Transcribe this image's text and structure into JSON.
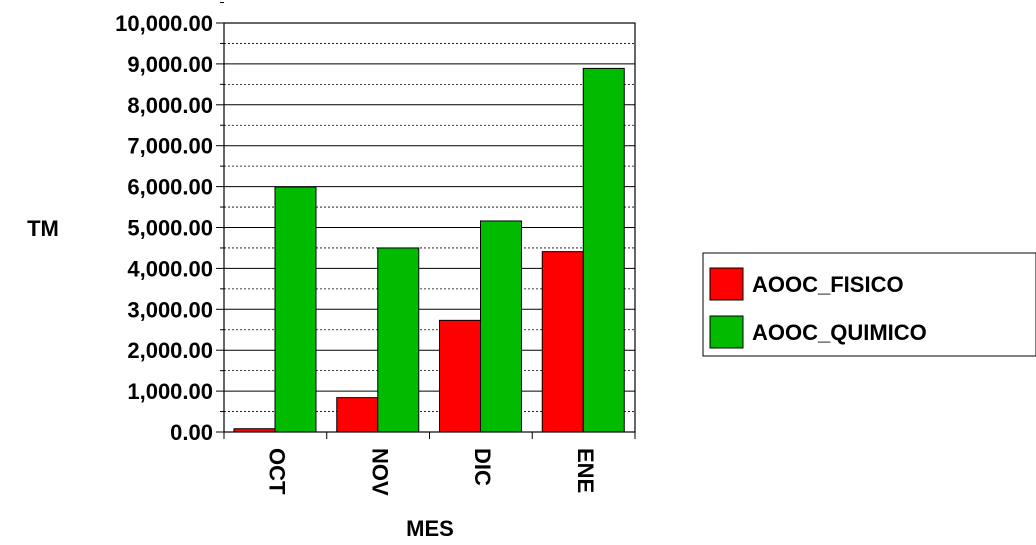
{
  "chart_data": {
    "type": "bar",
    "categories": [
      "OCT",
      "NOV",
      "DIC",
      "ENE"
    ],
    "series": [
      {
        "name": "AOOC_FISICO",
        "color": "#ff0000",
        "values": [
          80,
          840,
          2730,
          4410
        ]
      },
      {
        "name": "AOOC_QUIMICO",
        "color": "#00bb00",
        "values": [
          5990,
          4500,
          5160,
          8890
        ]
      }
    ],
    "xlabel": "MES",
    "ylabel": "TM",
    "ylim": [
      0,
      10000
    ],
    "yticks": [
      "0.00",
      "1,000.00",
      "2,000.00",
      "3,000.00",
      "4,000.00",
      "5,000.00",
      "6,000.00",
      "7,000.00",
      "8,000.00",
      "9,000.00",
      "10,000.00"
    ],
    "grid": "dashed horizontal",
    "legend_position": "right"
  }
}
